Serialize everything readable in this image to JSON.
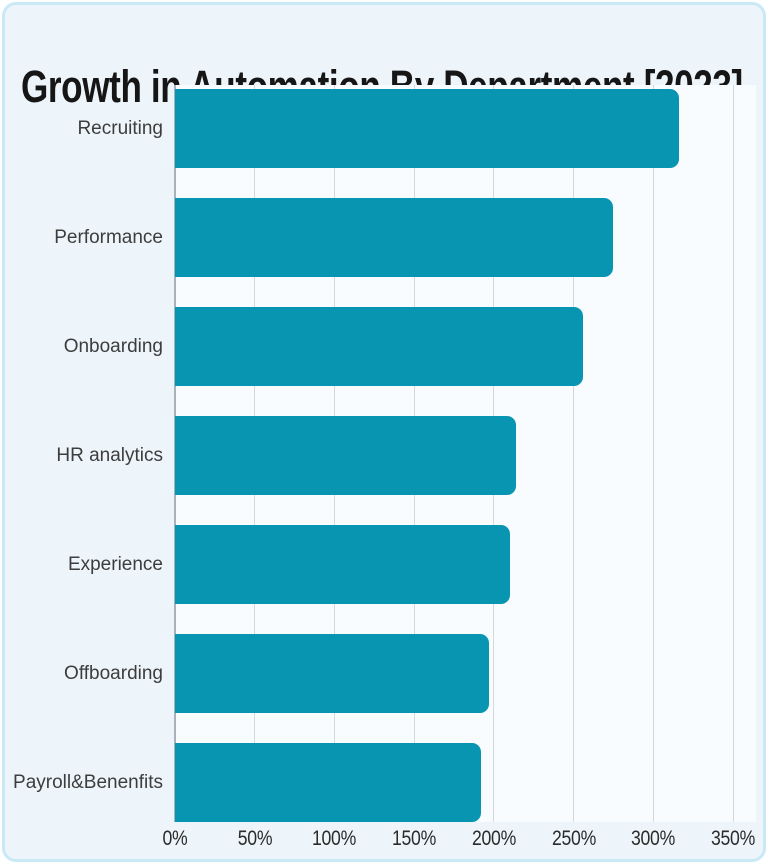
{
  "page": {
    "background": "#ffffff"
  },
  "card": {
    "background": "#edf5fa",
    "border_color": "#c8e9f5"
  },
  "chart_data": {
    "type": "bar",
    "orientation": "horizontal",
    "title": "Growth in Automation By Department [2023]",
    "categories": [
      "Recruiting",
      "Performance",
      "Onboarding",
      "HR analytics",
      "Experience",
      "Offboarding",
      "Payroll&Benenfits"
    ],
    "values": [
      316,
      275,
      256,
      214,
      210,
      197,
      192
    ],
    "value_unit": "%",
    "xlabel": "",
    "ylabel": "",
    "xlim": [
      0,
      350
    ],
    "x_ticks": [
      "0%",
      "50%",
      "100%",
      "150%",
      "200%",
      "250%",
      "300%",
      "350%"
    ],
    "grid": true,
    "legend": false,
    "bar_color": "#0895b1",
    "plot_background": "#f9fcfe",
    "gridline_color": "#d2d9dd",
    "axis_line_color": "#a9b2b9",
    "title_color": "#161616",
    "category_label_color": "#3d3d3d",
    "tick_label_color": "#2b2b2b"
  }
}
